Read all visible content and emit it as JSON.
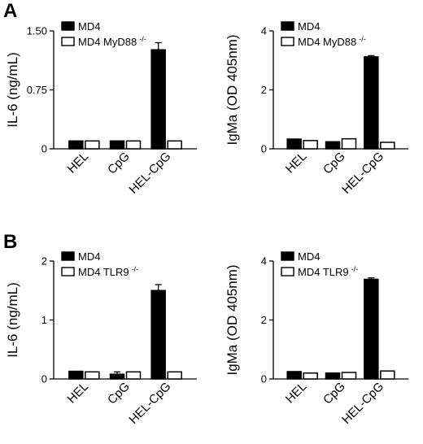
{
  "panels": [
    {
      "letter": "A"
    },
    {
      "letter": "B"
    }
  ],
  "chart_data": [
    {
      "type": "bar",
      "panel": "A",
      "ylabel": "IL-6 (ng/mL)",
      "categories": [
        "HEL",
        "CpG",
        "HEL-CpG"
      ],
      "ylim": [
        0,
        1.5
      ],
      "yticks": [
        "0",
        "0.75",
        "1.50"
      ],
      "legend": "top-left",
      "series": [
        {
          "name": "MD4",
          "values": [
            0.1,
            0.1,
            1.26
          ],
          "errors": [
            0,
            0,
            0.09
          ],
          "color": "#000000"
        },
        {
          "name": "MD4 MyD88",
          "superscript": "-/-",
          "values": [
            0.1,
            0.1,
            0.1
          ],
          "errors": [
            0,
            0,
            0
          ],
          "color": "#ffffff"
        }
      ]
    },
    {
      "type": "bar",
      "panel": "A",
      "ylabel": "IgMa (OD 405nm)",
      "categories": [
        "HEL",
        "CpG",
        "HEL-CpG"
      ],
      "ylim": [
        0,
        4
      ],
      "yticks": [
        "0",
        "2",
        "4"
      ],
      "legend": "top-left",
      "series": [
        {
          "name": "MD4",
          "values": [
            0.33,
            0.24,
            3.12
          ],
          "errors": [
            0,
            0,
            0.04
          ],
          "color": "#000000"
        },
        {
          "name": "MD4 MyD88",
          "superscript": "-/-",
          "values": [
            0.28,
            0.34,
            0.22
          ],
          "errors": [
            0,
            0,
            0
          ],
          "color": "#ffffff"
        }
      ]
    },
    {
      "type": "bar",
      "panel": "B",
      "ylabel": "IL-6 (ng/mL)",
      "categories": [
        "HEL",
        "CpG",
        "HEL-CpG"
      ],
      "ylim": [
        0,
        2
      ],
      "yticks": [
        "0",
        "1",
        "2"
      ],
      "legend": "top-left",
      "series": [
        {
          "name": "MD4",
          "values": [
            0.13,
            0.08,
            1.5
          ],
          "errors": [
            0,
            0.04,
            0.1
          ],
          "color": "#000000"
        },
        {
          "name": "MD4 TLR9",
          "superscript": "-/-",
          "values": [
            0.12,
            0.12,
            0.12
          ],
          "errors": [
            0,
            0,
            0
          ],
          "color": "#ffffff"
        }
      ]
    },
    {
      "type": "bar",
      "panel": "B",
      "ylabel": "IgMa (OD 405nm)",
      "categories": [
        "HEL",
        "CpG",
        "HEL-CpG"
      ],
      "ylim": [
        0,
        4
      ],
      "yticks": [
        "0",
        "2",
        "4"
      ],
      "legend": "top-left",
      "series": [
        {
          "name": "MD4",
          "values": [
            0.25,
            0.2,
            3.38
          ],
          "errors": [
            0,
            0,
            0.05
          ],
          "color": "#000000"
        },
        {
          "name": "MD4 TLR9",
          "superscript": "-/-",
          "values": [
            0.2,
            0.22,
            0.27
          ],
          "errors": [
            0,
            0,
            0
          ],
          "color": "#ffffff"
        }
      ]
    }
  ]
}
